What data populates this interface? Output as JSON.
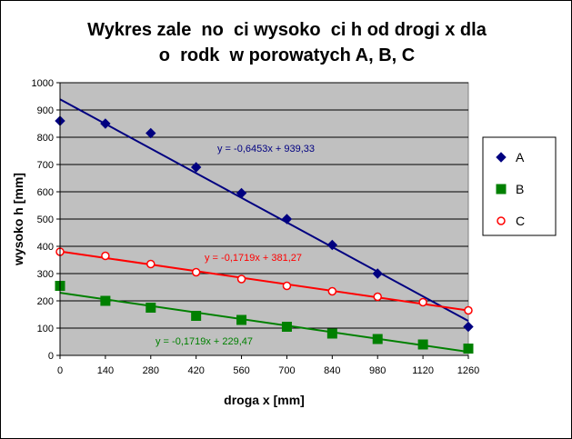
{
  "chart_data": {
    "type": "scatter",
    "title": "Wykres zale  no  ci wysoko  ci h od drogi x dla\no  rodk  w porowatych A, B, C",
    "xlabel": "droga x [mm]",
    "ylabel": "wysoko    h [mm]",
    "xlim": [
      0,
      1260
    ],
    "ylim": [
      0,
      1000
    ],
    "xticks": [
      "0",
      "140",
      "280",
      "420",
      "560",
      "700",
      "840",
      "980",
      "1120",
      "1260"
    ],
    "yticks": [
      "0",
      "100",
      "200",
      "300",
      "400",
      "500",
      "600",
      "700",
      "800",
      "900",
      "1000"
    ],
    "grid": "horizontal",
    "legend": "right",
    "series": [
      {
        "name": "A",
        "color": "#000080",
        "marker": "diamond",
        "x": [
          0,
          140,
          280,
          420,
          560,
          700,
          840,
          980,
          1260
        ],
        "y": [
          860,
          850,
          815,
          690,
          595,
          500,
          405,
          300,
          105
        ],
        "trend": {
          "slope": -0.6453,
          "intercept": 939.33,
          "label": "y = -0,6453x + 939,33"
        }
      },
      {
        "name": "B",
        "color": "#008000",
        "marker": "square",
        "x": [
          0,
          140,
          280,
          420,
          560,
          700,
          840,
          980,
          1120,
          1260
        ],
        "y": [
          255,
          200,
          175,
          145,
          130,
          105,
          80,
          60,
          40,
          25
        ],
        "trend": {
          "slope": -0.1719,
          "intercept": 229.47,
          "label": "y = -0,1719x + 229,47"
        }
      },
      {
        "name": "C",
        "color": "#ff0000",
        "marker": "circle",
        "x": [
          0,
          140,
          280,
          420,
          560,
          700,
          840,
          980,
          1120,
          1260
        ],
        "y": [
          380,
          365,
          335,
          305,
          280,
          255,
          235,
          215,
          195,
          165
        ],
        "trend": {
          "slope": -0.1719,
          "intercept": 381.27,
          "label": "y = -0,1719x + 381,27"
        }
      }
    ]
  }
}
